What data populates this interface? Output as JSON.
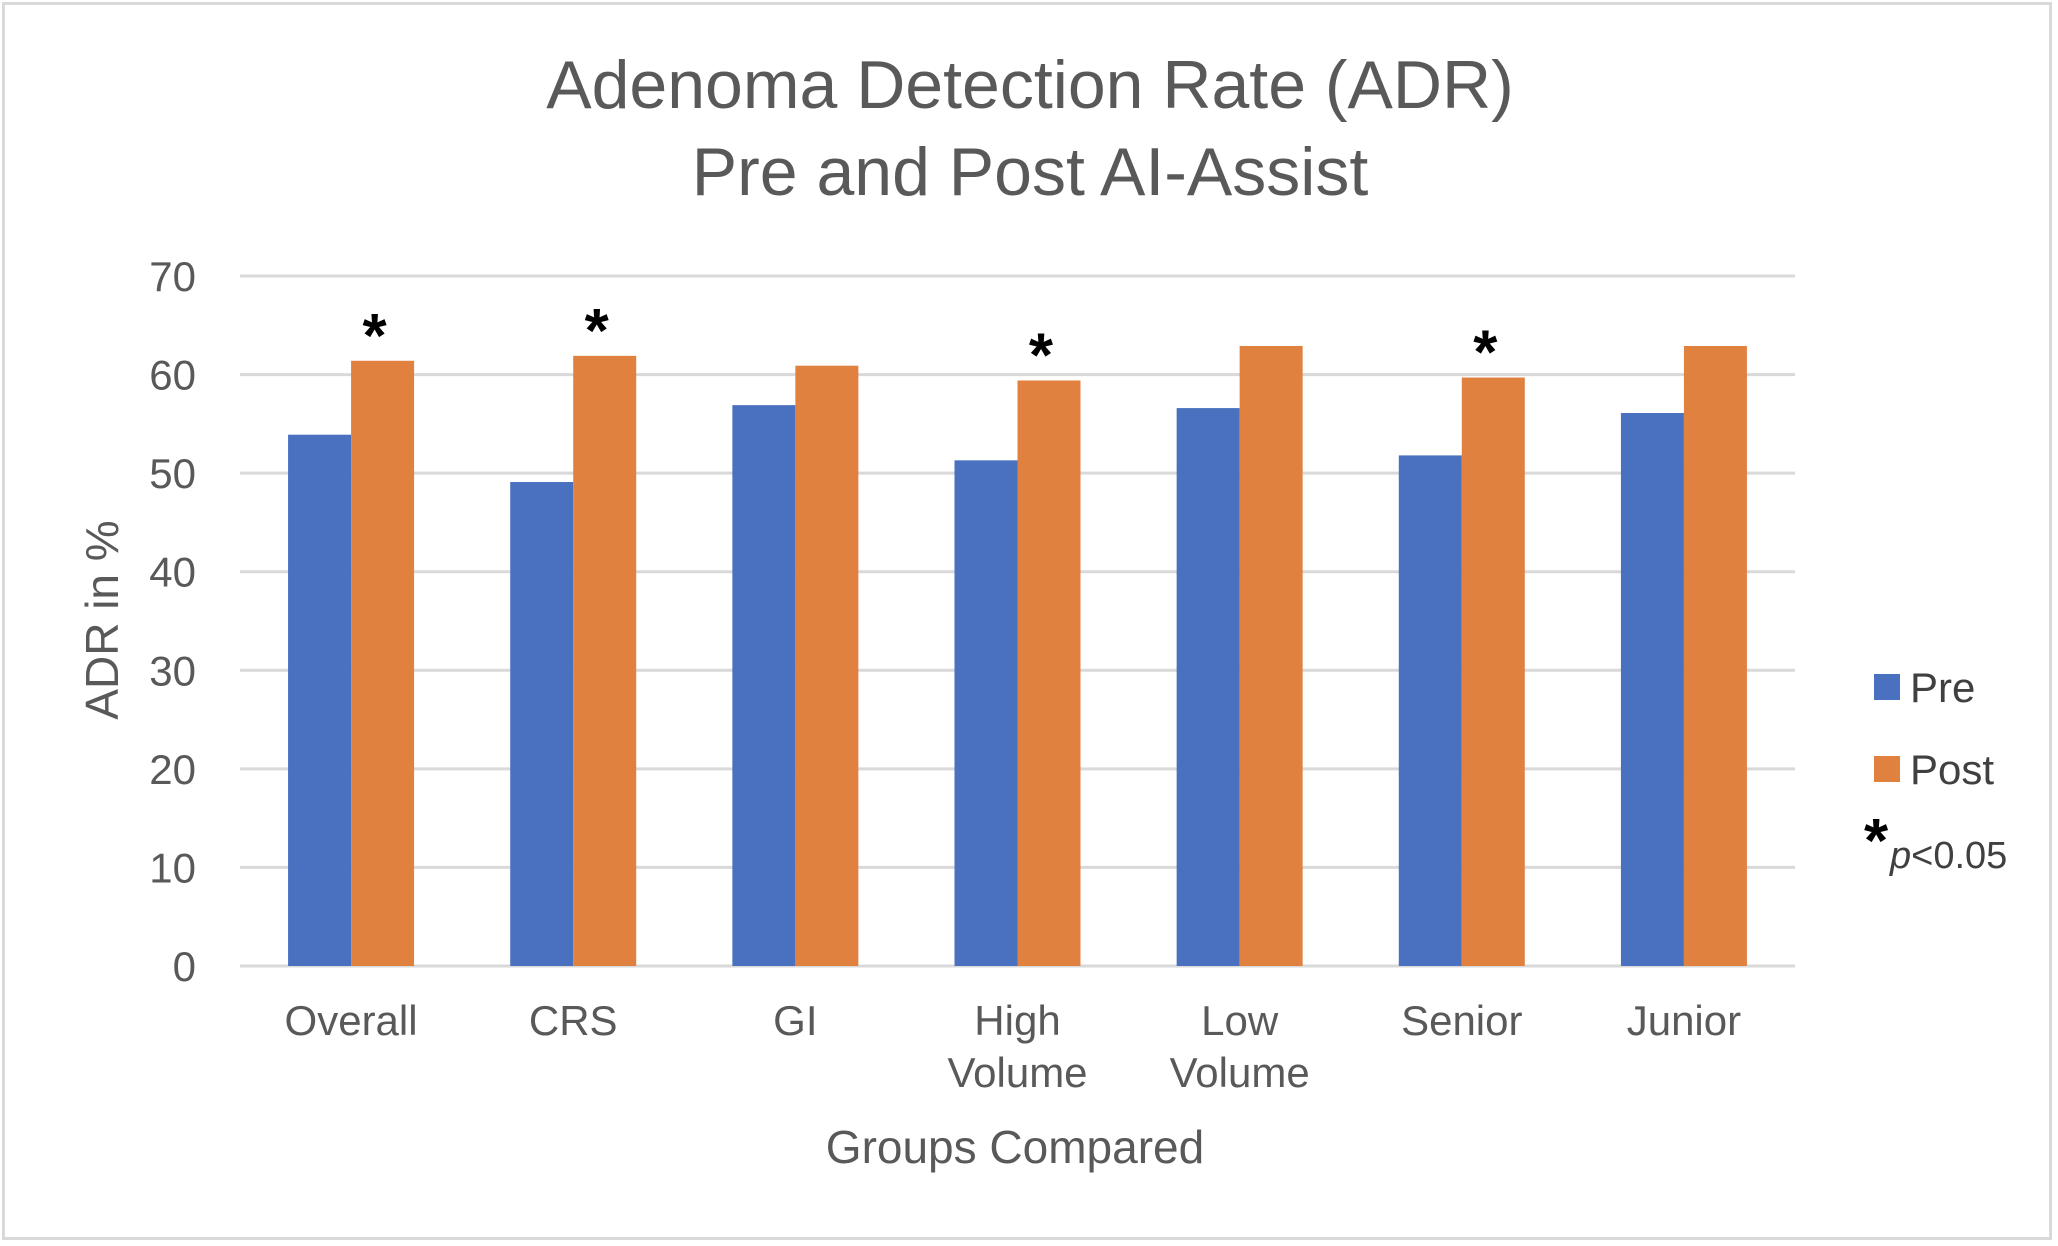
{
  "chart_data": {
    "type": "bar",
    "title": [
      "Adenoma Detection Rate (ADR)",
      "Pre and Post AI-Assist"
    ],
    "xlabel": "Groups Compared",
    "ylabel": "ADR in %",
    "ylim": [
      0,
      70
    ],
    "yticks": [
      0,
      10,
      20,
      30,
      40,
      50,
      60,
      70
    ],
    "grid": true,
    "legend_position": "right",
    "categories": [
      [
        "Overall"
      ],
      [
        "CRS"
      ],
      [
        "GI"
      ],
      [
        "High",
        "Volume"
      ],
      [
        "Low",
        "Volume"
      ],
      [
        "Senior"
      ],
      [
        "Junior"
      ]
    ],
    "series": [
      {
        "name": "Pre",
        "color": "#4a71bf",
        "values": [
          53.9,
          49.1,
          56.9,
          51.3,
          56.6,
          51.8,
          56.1
        ]
      },
      {
        "name": "Post",
        "color": "#e08140",
        "values": [
          61.4,
          61.9,
          60.9,
          59.4,
          62.9,
          59.7,
          62.9
        ]
      }
    ],
    "significant": [
      true,
      true,
      false,
      true,
      false,
      true,
      false
    ],
    "annotation": {
      "marker": "*",
      "p_label": "p",
      "p_text": "<0.05"
    }
  }
}
